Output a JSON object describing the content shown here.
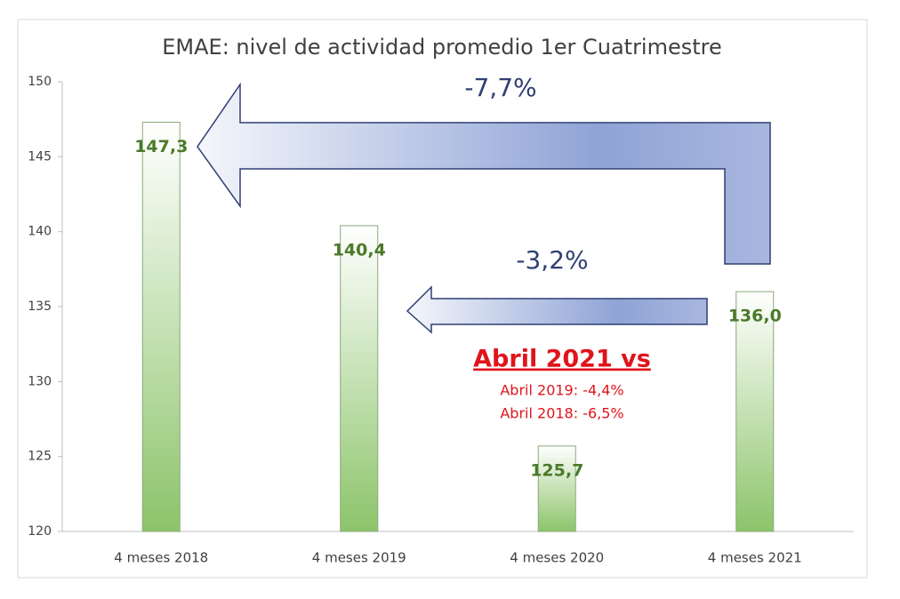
{
  "chart_data": {
    "type": "bar",
    "title": "EMAE: nivel de actividad promedio 1er Cuatrimestre",
    "categories": [
      "4 meses 2018",
      "4 meses 2019",
      "4 meses 2020",
      "4 meses 2021"
    ],
    "values": [
      147.3,
      140.4,
      125.7,
      136.0
    ],
    "value_labels": [
      "147,3",
      "140,4",
      "125,7",
      "136,0"
    ],
    "color": "#8cc46a",
    "ylim": [
      120,
      150
    ],
    "yticks": [
      120,
      125,
      130,
      135,
      140,
      145,
      150
    ],
    "annotations": [
      "-7,7%",
      "-3,2%",
      "Abril 2021 vs",
      "Abril 2019: -4,4%",
      "Abril 2018: -6,5%"
    ]
  }
}
